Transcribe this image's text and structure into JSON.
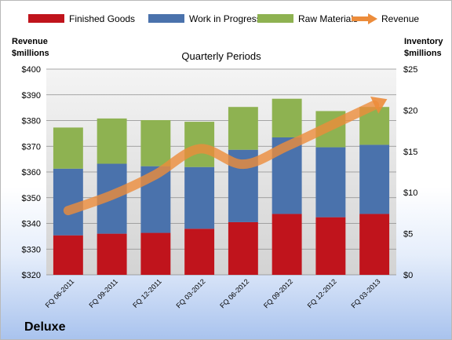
{
  "chart_data": {
    "type": "bar",
    "stacked": true,
    "subtitle": "Quarterly Periods",
    "brand": "Deluxe",
    "categories": [
      "FQ 06-2011",
      "FQ 09-2011",
      "FQ 12-2011",
      "FQ 03-2012",
      "FQ 06-2012",
      "FQ 09-2012",
      "FQ 12-2012",
      "FQ 03-2013"
    ],
    "left_axis": {
      "label_line1": "Revenue",
      "label_line2": "$millions",
      "min": 320,
      "max": 400,
      "step": 10,
      "ticks": [
        "$320",
        "$330",
        "$340",
        "$350",
        "$360",
        "$370",
        "$380",
        "$390",
        "$400"
      ]
    },
    "right_axis": {
      "label_line1": "Inventory",
      "label_line2": "$millions",
      "min": 0,
      "max": 25,
      "step": 5,
      "ticks": [
        "$0",
        "$5",
        "$10",
        "$15",
        "$20",
        "$25"
      ]
    },
    "series": [
      {
        "name": "Finished Goods",
        "kind": "bar",
        "axis": "right",
        "color": "#c0141c",
        "values": [
          4.8,
          5.0,
          5.1,
          5.6,
          6.4,
          7.4,
          7.0,
          7.4
        ]
      },
      {
        "name": "Work in Progress",
        "kind": "bar",
        "axis": "right",
        "color": "#4a72ac",
        "values": [
          8.1,
          8.5,
          8.1,
          7.5,
          8.8,
          9.3,
          8.5,
          8.4
        ]
      },
      {
        "name": "Raw Materials",
        "kind": "bar",
        "axis": "right",
        "color": "#8eb251",
        "values": [
          5.0,
          5.5,
          5.6,
          5.5,
          5.2,
          4.7,
          4.4,
          4.6
        ]
      },
      {
        "name": "Revenue",
        "kind": "line",
        "axis": "left",
        "color": "#ec8c3b",
        "values": [
          345,
          351,
          359,
          369,
          363,
          370,
          378,
          386
        ]
      }
    ],
    "grid": true,
    "legend_position": "top"
  }
}
